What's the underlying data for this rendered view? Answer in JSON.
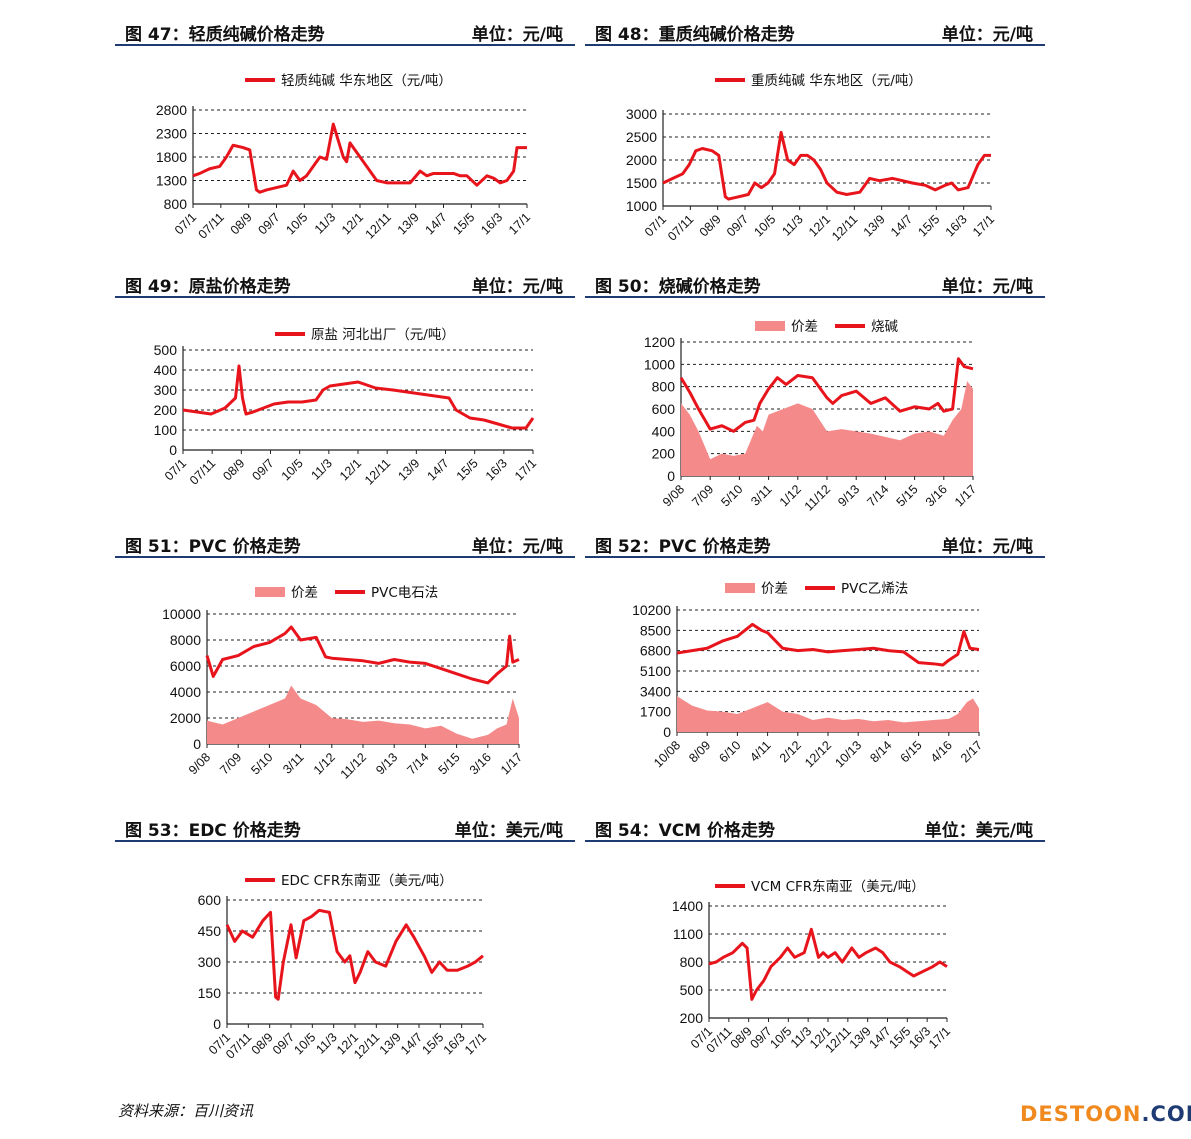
{
  "footer": {
    "source": "资料来源：百川资讯",
    "logo_part1": "DESTOON",
    "logo_part2": ".COM"
  },
  "colors": {
    "line": "#e8141c",
    "area": "#f58a8a",
    "rule": "#1f3b73"
  },
  "panels": [
    {
      "title": "图 47：轻质纯碱价格走势",
      "unit": "单位：元/吨"
    },
    {
      "title": "图 48：重质纯碱价格走势",
      "unit": "单位：元/吨"
    },
    {
      "title": "图 49：原盐价格走势",
      "unit": "单位：元/吨"
    },
    {
      "title": "图 50：烧碱价格走势",
      "unit": "单位：元/吨"
    },
    {
      "title": "图 51：PVC 价格走势",
      "unit": "单位：元/吨"
    },
    {
      "title": "图 52：PVC 价格走势",
      "unit": "单位：元/吨"
    },
    {
      "title": "图 53：EDC 价格走势",
      "unit": "单位：美元/吨"
    },
    {
      "title": "图 54：VCM 价格走势",
      "unit": "单位：美元/吨"
    }
  ],
  "chart_data": [
    {
      "type": "line",
      "legend": [
        "轻质纯碱 华东地区（元/吨）"
      ],
      "ylim": [
        800,
        2800
      ],
      "yticks": [
        800,
        1300,
        1800,
        2300,
        2800
      ],
      "xticks": [
        "07/1",
        "07/11",
        "08/9",
        "09/7",
        "10/5",
        "11/3",
        "12/1",
        "12/11",
        "13/9",
        "14/7",
        "15/5",
        "16/3",
        "17/1"
      ],
      "series": [
        {
          "name": "轻质纯碱 华东地区（元/吨）",
          "x": [
            0,
            0.02,
            0.05,
            0.08,
            0.1,
            0.12,
            0.15,
            0.17,
            0.19,
            0.2,
            0.22,
            0.25,
            0.28,
            0.3,
            0.32,
            0.34,
            0.36,
            0.38,
            0.4,
            0.42,
            0.45,
            0.46,
            0.47,
            0.48,
            0.5,
            0.52,
            0.55,
            0.58,
            0.6,
            0.62,
            0.65,
            0.68,
            0.7,
            0.72,
            0.75,
            0.78,
            0.8,
            0.82,
            0.85,
            0.88,
            0.9,
            0.92,
            0.94,
            0.96,
            0.97,
            0.98,
            1
          ],
          "y": [
            1400,
            1450,
            1550,
            1600,
            1800,
            2050,
            2000,
            1950,
            1100,
            1050,
            1100,
            1150,
            1200,
            1500,
            1300,
            1400,
            1600,
            1800,
            1750,
            2500,
            1800,
            1700,
            2100,
            2000,
            1800,
            1600,
            1300,
            1250,
            1250,
            1250,
            1250,
            1500,
            1400,
            1450,
            1450,
            1450,
            1400,
            1400,
            1200,
            1400,
            1350,
            1250,
            1300,
            1500,
            2000,
            2000,
            2000
          ]
        }
      ]
    },
    {
      "type": "line",
      "legend": [
        "重质纯碱 华东地区（元/吨）"
      ],
      "ylim": [
        1000,
        3000
      ],
      "yticks": [
        1000,
        1500,
        2000,
        2500,
        3000
      ],
      "xticks": [
        "07/1",
        "07/11",
        "08/9",
        "09/7",
        "10/5",
        "11/3",
        "12/1",
        "12/11",
        "13/9",
        "14/7",
        "15/5",
        "16/3",
        "17/1"
      ],
      "series": [
        {
          "name": "重质纯碱 华东地区（元/吨）",
          "x": [
            0,
            0.03,
            0.06,
            0.08,
            0.1,
            0.12,
            0.15,
            0.17,
            0.19,
            0.2,
            0.23,
            0.26,
            0.28,
            0.3,
            0.32,
            0.34,
            0.36,
            0.38,
            0.4,
            0.42,
            0.44,
            0.46,
            0.48,
            0.5,
            0.53,
            0.56,
            0.6,
            0.63,
            0.66,
            0.7,
            0.73,
            0.76,
            0.8,
            0.83,
            0.86,
            0.88,
            0.9,
            0.93,
            0.96,
            0.98,
            1
          ],
          "y": [
            1500,
            1600,
            1700,
            1900,
            2200,
            2250,
            2200,
            2100,
            1200,
            1150,
            1200,
            1250,
            1500,
            1400,
            1500,
            1700,
            2600,
            2000,
            1900,
            2100,
            2100,
            2000,
            1800,
            1500,
            1300,
            1250,
            1300,
            1600,
            1550,
            1600,
            1550,
            1500,
            1450,
            1350,
            1450,
            1500,
            1350,
            1400,
            1900,
            2100,
            2100
          ]
        }
      ]
    },
    {
      "type": "line",
      "legend": [
        "原盐 河北出厂（元/吨）"
      ],
      "ylim": [
        0,
        500
      ],
      "yticks": [
        0,
        100,
        200,
        300,
        400,
        500
      ],
      "xticks": [
        "07/1",
        "07/11",
        "08/9",
        "09/7",
        "10/5",
        "11/3",
        "12/1",
        "12/11",
        "13/9",
        "14/7",
        "15/5",
        "16/3",
        "17/1"
      ],
      "series": [
        {
          "name": "原盐 河北出厂（元/吨）",
          "x": [
            0,
            0.04,
            0.08,
            0.12,
            0.15,
            0.16,
            0.17,
            0.18,
            0.2,
            0.23,
            0.26,
            0.3,
            0.34,
            0.38,
            0.4,
            0.42,
            0.46,
            0.5,
            0.55,
            0.6,
            0.64,
            0.68,
            0.72,
            0.76,
            0.78,
            0.82,
            0.86,
            0.9,
            0.94,
            0.98,
            1
          ],
          "y": [
            200,
            190,
            180,
            210,
            260,
            420,
            260,
            180,
            190,
            210,
            230,
            240,
            240,
            250,
            300,
            320,
            330,
            340,
            310,
            300,
            290,
            280,
            270,
            260,
            200,
            160,
            150,
            130,
            110,
            110,
            160
          ]
        }
      ]
    },
    {
      "type": "area+line",
      "legend": [
        "价差",
        "烧碱"
      ],
      "ylim": [
        0,
        1200
      ],
      "yticks": [
        0,
        200,
        400,
        600,
        800,
        1000,
        1200
      ],
      "xticks": [
        "9/08",
        "7/09",
        "5/10",
        "3/11",
        "1/12",
        "11/12",
        "9/13",
        "7/14",
        "5/15",
        "3/16",
        "1/17"
      ],
      "series": [
        {
          "name": "价差",
          "kind": "area",
          "x": [
            0,
            0.03,
            0.06,
            0.1,
            0.14,
            0.18,
            0.22,
            0.26,
            0.28,
            0.3,
            0.35,
            0.4,
            0.45,
            0.5,
            0.55,
            0.6,
            0.65,
            0.7,
            0.75,
            0.8,
            0.85,
            0.9,
            0.93,
            0.96,
            0.98,
            1
          ],
          "y": [
            650,
            550,
            400,
            150,
            200,
            180,
            200,
            450,
            400,
            550,
            600,
            650,
            600,
            400,
            420,
            400,
            380,
            350,
            320,
            380,
            400,
            360,
            500,
            600,
            850,
            780
          ]
        },
        {
          "name": "烧碱",
          "kind": "line",
          "x": [
            0,
            0.03,
            0.06,
            0.1,
            0.14,
            0.18,
            0.22,
            0.25,
            0.27,
            0.3,
            0.33,
            0.36,
            0.4,
            0.45,
            0.5,
            0.52,
            0.55,
            0.6,
            0.65,
            0.7,
            0.75,
            0.8,
            0.85,
            0.88,
            0.9,
            0.93,
            0.95,
            0.97,
            1
          ],
          "y": [
            880,
            750,
            600,
            420,
            450,
            400,
            480,
            500,
            650,
            780,
            880,
            820,
            900,
            880,
            700,
            650,
            720,
            760,
            650,
            700,
            580,
            620,
            600,
            650,
            580,
            600,
            1050,
            980,
            960
          ]
        }
      ]
    },
    {
      "type": "area+line",
      "legend": [
        "价差",
        "PVC电石法"
      ],
      "ylim": [
        0,
        10000
      ],
      "yticks": [
        0,
        2000,
        4000,
        6000,
        8000,
        10000
      ],
      "xticks": [
        "9/08",
        "7/09",
        "5/10",
        "3/11",
        "1/12",
        "11/12",
        "9/13",
        "7/14",
        "5/15",
        "3/16",
        "1/17"
      ],
      "series": [
        {
          "name": "价差",
          "kind": "area",
          "x": [
            0,
            0.05,
            0.1,
            0.15,
            0.2,
            0.25,
            0.27,
            0.3,
            0.35,
            0.4,
            0.45,
            0.5,
            0.55,
            0.6,
            0.65,
            0.7,
            0.75,
            0.8,
            0.85,
            0.9,
            0.93,
            0.96,
            0.98,
            1
          ],
          "y": [
            1800,
            1500,
            2000,
            2500,
            3000,
            3500,
            4500,
            3500,
            3000,
            2000,
            1900,
            1700,
            1800,
            1600,
            1500,
            1200,
            1400,
            800,
            400,
            700,
            1200,
            1500,
            3500,
            2000
          ]
        },
        {
          "name": "PVC电石法",
          "kind": "line",
          "x": [
            0,
            0.02,
            0.05,
            0.1,
            0.15,
            0.2,
            0.25,
            0.27,
            0.3,
            0.35,
            0.38,
            0.4,
            0.45,
            0.5,
            0.55,
            0.6,
            0.65,
            0.7,
            0.75,
            0.8,
            0.85,
            0.9,
            0.93,
            0.96,
            0.97,
            0.98,
            1
          ],
          "y": [
            6800,
            5200,
            6500,
            6800,
            7500,
            7800,
            8500,
            9000,
            8000,
            8200,
            6700,
            6600,
            6500,
            6400,
            6200,
            6500,
            6300,
            6200,
            5800,
            5400,
            5000,
            4700,
            5400,
            6000,
            8300,
            6300,
            6500
          ]
        }
      ]
    },
    {
      "type": "area+line",
      "legend": [
        "价差",
        "PVC乙烯法"
      ],
      "ylim": [
        0,
        10200
      ],
      "yticks": [
        0,
        1700,
        3400,
        5100,
        6800,
        8500,
        10200
      ],
      "xticks": [
        "10/08",
        "8/09",
        "6/10",
        "4/11",
        "2/12",
        "12/12",
        "10/13",
        "8/14",
        "6/15",
        "4/16",
        "2/17"
      ],
      "series": [
        {
          "name": "价差",
          "kind": "area",
          "x": [
            0,
            0.05,
            0.1,
            0.15,
            0.2,
            0.25,
            0.3,
            0.35,
            0.4,
            0.45,
            0.5,
            0.55,
            0.6,
            0.65,
            0.7,
            0.75,
            0.8,
            0.85,
            0.9,
            0.93,
            0.96,
            0.98,
            1
          ],
          "y": [
            3000,
            2200,
            1800,
            1700,
            1500,
            2000,
            2500,
            1700,
            1500,
            1000,
            1200,
            1000,
            1100,
            900,
            1000,
            800,
            900,
            1000,
            1100,
            1500,
            2500,
            2800,
            2000
          ]
        },
        {
          "name": "PVC乙烯法",
          "kind": "line",
          "x": [
            0,
            0.05,
            0.1,
            0.15,
            0.2,
            0.25,
            0.28,
            0.3,
            0.35,
            0.4,
            0.45,
            0.5,
            0.55,
            0.6,
            0.65,
            0.7,
            0.75,
            0.8,
            0.85,
            0.88,
            0.9,
            0.93,
            0.95,
            0.97,
            1
          ],
          "y": [
            6600,
            6800,
            7000,
            7600,
            8000,
            9000,
            8500,
            8300,
            7000,
            6800,
            6900,
            6700,
            6800,
            6900,
            7000,
            6800,
            6700,
            5800,
            5700,
            5600,
            6000,
            6500,
            8400,
            7000,
            6900
          ]
        }
      ]
    },
    {
      "type": "line",
      "legend": [
        "EDC CFR东南亚（美元/吨）"
      ],
      "ylim": [
        0,
        600
      ],
      "yticks": [
        0,
        150,
        300,
        450,
        600
      ],
      "xticks": [
        "07/1",
        "07/11",
        "08/9",
        "09/7",
        "10/5",
        "11/3",
        "12/1",
        "12/11",
        "13/9",
        "14/7",
        "15/5",
        "16/3",
        "17/1"
      ],
      "series": [
        {
          "name": "EDC CFR东南亚（美元/吨）",
          "x": [
            0,
            0.03,
            0.06,
            0.1,
            0.14,
            0.17,
            0.19,
            0.2,
            0.22,
            0.25,
            0.27,
            0.3,
            0.33,
            0.36,
            0.4,
            0.43,
            0.46,
            0.48,
            0.5,
            0.52,
            0.55,
            0.58,
            0.62,
            0.66,
            0.7,
            0.73,
            0.77,
            0.8,
            0.83,
            0.86,
            0.9,
            0.94,
            0.97,
            1
          ],
          "y": [
            480,
            400,
            450,
            420,
            500,
            540,
            130,
            120,
            300,
            480,
            320,
            500,
            520,
            550,
            540,
            350,
            300,
            330,
            200,
            250,
            350,
            300,
            280,
            400,
            480,
            420,
            330,
            250,
            300,
            260,
            260,
            280,
            300,
            330
          ]
        }
      ]
    },
    {
      "type": "line",
      "legend": [
        "VCM CFR东南亚（美元/吨）"
      ],
      "ylim": [
        200,
        1400
      ],
      "yticks": [
        200,
        500,
        800,
        1100,
        1400
      ],
      "xticks": [
        "07/1",
        "07/11",
        "08/9",
        "09/7",
        "10/5",
        "11/3",
        "12/1",
        "12/11",
        "13/9",
        "14/7",
        "15/5",
        "16/3",
        "17/1"
      ],
      "series": [
        {
          "name": "VCM CFR东南亚（美元/吨）",
          "x": [
            0,
            0.03,
            0.06,
            0.1,
            0.14,
            0.16,
            0.18,
            0.2,
            0.23,
            0.26,
            0.3,
            0.33,
            0.36,
            0.4,
            0.43,
            0.46,
            0.48,
            0.5,
            0.53,
            0.56,
            0.6,
            0.63,
            0.66,
            0.7,
            0.73,
            0.76,
            0.8,
            0.83,
            0.86,
            0.9,
            0.94,
            0.97,
            1
          ],
          "y": [
            780,
            800,
            850,
            900,
            1000,
            950,
            400,
            500,
            600,
            750,
            850,
            950,
            850,
            900,
            1150,
            850,
            900,
            850,
            900,
            800,
            950,
            850,
            900,
            950,
            900,
            800,
            750,
            700,
            650,
            700,
            750,
            800,
            750
          ]
        }
      ]
    }
  ]
}
